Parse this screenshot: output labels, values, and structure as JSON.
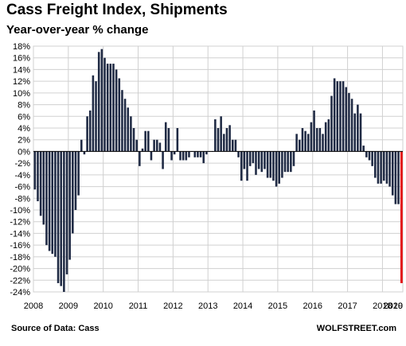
{
  "chart_data": {
    "type": "bar",
    "title": "Cass Freight Index, Shipments",
    "subtitle": "Year-over-year % change",
    "ylim": [
      -24,
      18
    ],
    "y_ticks": [
      "18%",
      "16%",
      "14%",
      "12%",
      "10%",
      "8%",
      "6%",
      "4%",
      "2%",
      "0%",
      "-2%",
      "-4%",
      "-6%",
      "-8%",
      "-10%",
      "-12%",
      "-14%",
      "-16%",
      "-18%",
      "-20%",
      "-22%",
      "-24%"
    ],
    "x_ticks": [
      "2008",
      "2009",
      "2010",
      "2011",
      "2012",
      "2013",
      "2014",
      "2015",
      "2016",
      "2017",
      "2018",
      "2019",
      "2020"
    ],
    "x_start_year": 2008,
    "grid": true,
    "colors": {
      "bars": "#1f2a44",
      "highlight": "#e31a1c",
      "grid": "#d0d0d0"
    },
    "series": [
      {
        "values": [
          -6.5,
          -8.5,
          -11,
          -12.5,
          -16,
          -17,
          -17.5,
          -18,
          -22.5,
          -23,
          -24,
          -21,
          -18.5,
          -14,
          -10,
          -7.5,
          2,
          -0.5,
          6,
          7,
          13,
          12,
          17,
          17.5,
          16,
          15,
          15,
          15,
          14,
          12.5,
          10.5,
          9,
          7.5,
          6,
          4,
          2,
          -2.5,
          0.5,
          3.5,
          3.5,
          -1.5,
          2,
          2,
          1.5,
          -3,
          5,
          4,
          -1.5,
          -0.5,
          4,
          -1.5,
          -1.5,
          -1.5,
          -1,
          0,
          -1,
          -1,
          -1,
          -2,
          -0.5,
          0,
          0,
          5.5,
          4,
          6,
          3,
          4,
          4.5,
          2,
          2,
          -1,
          -5,
          -3,
          -5,
          -2.5,
          -2,
          -4,
          -3,
          -3.5,
          -3,
          -4.5,
          -4.5,
          -5,
          -6,
          -5.5,
          -4.5,
          -3.5,
          -3.5,
          -3.5,
          -2.5,
          3,
          2,
          4,
          3.5,
          3,
          5,
          7,
          4,
          4,
          3,
          5,
          5.5,
          9.5,
          12.5,
          12,
          12,
          12,
          11,
          10,
          9,
          6.5,
          8,
          6.5,
          1,
          -1,
          -1.5,
          -2.5,
          -4.5,
          -5.5,
          -5.5,
          -5,
          -5.5,
          -6,
          -7.5,
          -9,
          -9,
          -22.5
        ],
        "highlight_last": true
      }
    ]
  },
  "footer": {
    "source": "Source of Data: Cass",
    "brand": "WOLFSTREET.com"
  }
}
